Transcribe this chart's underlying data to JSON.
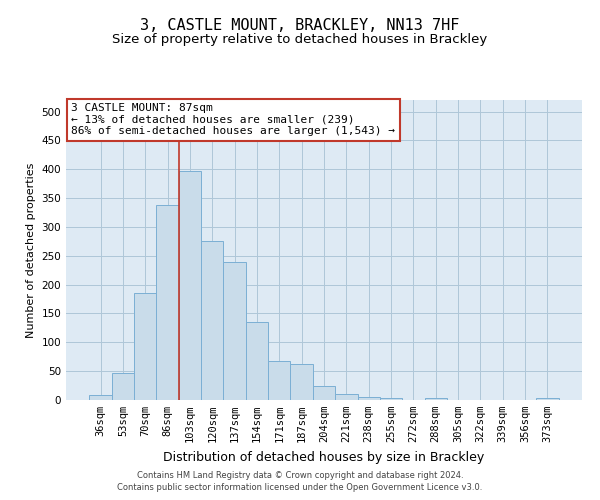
{
  "title": "3, CASTLE MOUNT, BRACKLEY, NN13 7HF",
  "subtitle": "Size of property relative to detached houses in Brackley",
  "xlabel": "Distribution of detached houses by size in Brackley",
  "ylabel": "Number of detached properties",
  "footer_line1": "Contains HM Land Registry data © Crown copyright and database right 2024.",
  "footer_line2": "Contains public sector information licensed under the Open Government Licence v3.0.",
  "categories": [
    "36sqm",
    "53sqm",
    "70sqm",
    "86sqm",
    "103sqm",
    "120sqm",
    "137sqm",
    "154sqm",
    "171sqm",
    "187sqm",
    "204sqm",
    "221sqm",
    "238sqm",
    "255sqm",
    "272sqm",
    "288sqm",
    "305sqm",
    "322sqm",
    "339sqm",
    "356sqm",
    "373sqm"
  ],
  "values": [
    8,
    46,
    185,
    338,
    397,
    275,
    240,
    135,
    68,
    62,
    25,
    10,
    5,
    4,
    0,
    3,
    0,
    0,
    0,
    0,
    4
  ],
  "bar_color": "#c9dcea",
  "bar_edge_color": "#7bafd4",
  "bar_edge_width": 0.7,
  "vline_color": "#c0392b",
  "vline_x": 3.5,
  "annotation_line1": "3 CASTLE MOUNT: 87sqm",
  "annotation_line2": "← 13% of detached houses are smaller (239)",
  "annotation_line3": "86% of semi-detached houses are larger (1,543) →",
  "annotation_box_facecolor": "#ffffff",
  "annotation_box_edgecolor": "#c0392b",
  "ylim": [
    0,
    520
  ],
  "yticks": [
    0,
    50,
    100,
    150,
    200,
    250,
    300,
    350,
    400,
    450,
    500
  ],
  "grid_color": "#aec6d8",
  "bg_color": "#deeaf4",
  "title_fontsize": 11,
  "subtitle_fontsize": 9.5,
  "xlabel_fontsize": 9,
  "ylabel_fontsize": 8,
  "tick_fontsize": 7.5,
  "annotation_fontsize": 8,
  "footer_fontsize": 6
}
